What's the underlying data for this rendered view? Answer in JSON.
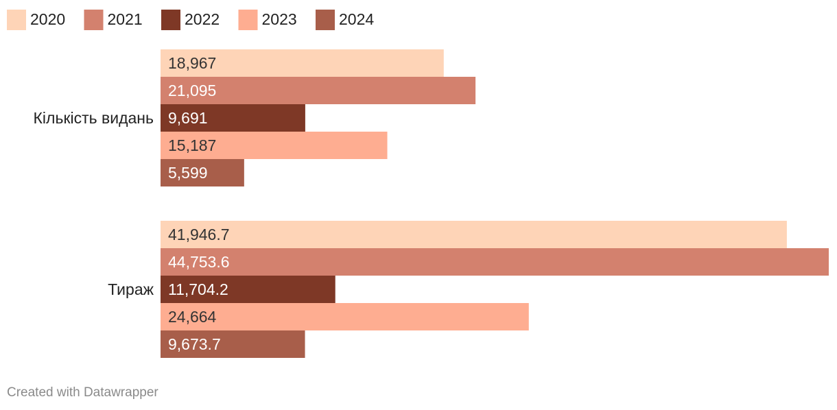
{
  "footer": "Created with Datawrapper",
  "chart_data": {
    "type": "bar",
    "orientation": "horizontal",
    "categories": [
      "Кількість видань",
      "Тираж"
    ],
    "series": [
      {
        "name": "2020",
        "color": "#fed4b7",
        "label_color": "#333333",
        "values": [
          18967,
          41946.7
        ],
        "labels": [
          "18,967",
          "41,946.7"
        ]
      },
      {
        "name": "2021",
        "color": "#d3816e",
        "label_color": "#ffffff",
        "values": [
          21095,
          44753.6
        ],
        "labels": [
          "21,095",
          "44,753.6"
        ]
      },
      {
        "name": "2022",
        "color": "#7e3826",
        "label_color": "#ffffff",
        "values": [
          9691,
          11704.2
        ],
        "labels": [
          "9,691",
          "11,704.2"
        ]
      },
      {
        "name": "2023",
        "color": "#fead91",
        "label_color": "#333333",
        "values": [
          15187,
          24664
        ],
        "labels": [
          "15,187",
          "24,664"
        ]
      },
      {
        "name": "2024",
        "color": "#a85e4a",
        "label_color": "#ffffff",
        "values": [
          5599,
          9673.7
        ],
        "labels": [
          "5,599",
          "9,673.7"
        ]
      }
    ],
    "legend_position": "top-left",
    "grid": false,
    "xlim": [
      0,
      44753.6
    ]
  }
}
